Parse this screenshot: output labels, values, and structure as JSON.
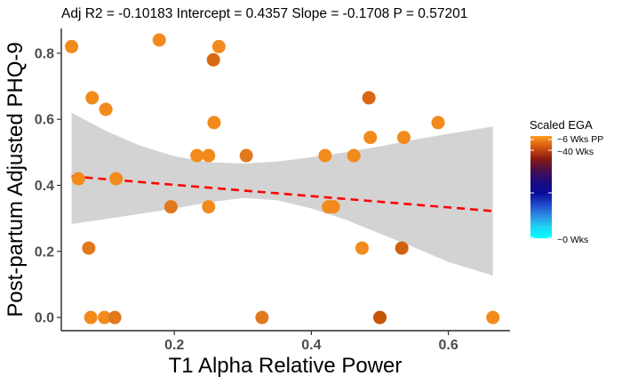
{
  "chart_data": {
    "type": "scatter",
    "title": "Adj R2 =  -0.10183 Intercept = 0.4357  Slope = -0.1708  P = 0.57201",
    "xlabel": "T1 Alpha Relative Power",
    "ylabel": "Post-partum Adjusted PHQ-9",
    "xlim": [
      0.035,
      0.69
    ],
    "ylim": [
      -0.04,
      0.875
    ],
    "xticks": [
      0.2,
      0.4,
      0.6
    ],
    "xtick_labels": [
      "0.2",
      "0.4",
      "0.6"
    ],
    "yticks": [
      0.0,
      0.2,
      0.4,
      0.6,
      0.8
    ],
    "ytick_labels": [
      "0.0",
      "0.2",
      "0.4",
      "0.6",
      "0.8"
    ],
    "grid": false,
    "legend_position": "right",
    "regression": {
      "intercept": 0.4357,
      "slope": -0.1708,
      "x_range": [
        0.05,
        0.665
      ],
      "color": "#ff0000",
      "style": "dashed"
    },
    "confidence_band": {
      "x": [
        0.05,
        0.1,
        0.15,
        0.2,
        0.25,
        0.3,
        0.35,
        0.4,
        0.45,
        0.5,
        0.55,
        0.6,
        0.665
      ],
      "upper": [
        0.62,
        0.565,
        0.52,
        0.488,
        0.47,
        0.466,
        0.472,
        0.485,
        0.5,
        0.518,
        0.538,
        0.556,
        0.578
      ],
      "lower": [
        0.283,
        0.298,
        0.314,
        0.33,
        0.348,
        0.362,
        0.355,
        0.33,
        0.296,
        0.254,
        0.212,
        0.168,
        0.127
      ],
      "color": "#d3d3d3"
    },
    "points": [
      {
        "x": 0.05,
        "y": 0.82,
        "color": "#f28a1c"
      },
      {
        "x": 0.06,
        "y": 0.42,
        "color": "#f28a1c"
      },
      {
        "x": 0.075,
        "y": 0.21,
        "color": "#e1781b"
      },
      {
        "x": 0.08,
        "y": 0.665,
        "color": "#f28a1c"
      },
      {
        "x": 0.1,
        "y": 0.63,
        "color": "#f28a1c"
      },
      {
        "x": 0.078,
        "y": 0.0,
        "color": "#f28a1c"
      },
      {
        "x": 0.098,
        "y": 0.0,
        "color": "#f28a1c"
      },
      {
        "x": 0.113,
        "y": 0.0,
        "color": "#e1781b"
      },
      {
        "x": 0.115,
        "y": 0.42,
        "color": "#f28a1c"
      },
      {
        "x": 0.178,
        "y": 0.84,
        "color": "#f28a1c"
      },
      {
        "x": 0.195,
        "y": 0.335,
        "color": "#e1781b"
      },
      {
        "x": 0.233,
        "y": 0.49,
        "color": "#f28a1c"
      },
      {
        "x": 0.25,
        "y": 0.49,
        "color": "#f28a1c"
      },
      {
        "x": 0.25,
        "y": 0.335,
        "color": "#f28a1c"
      },
      {
        "x": 0.257,
        "y": 0.78,
        "color": "#d86812"
      },
      {
        "x": 0.258,
        "y": 0.59,
        "color": "#f28a1c"
      },
      {
        "x": 0.265,
        "y": 0.82,
        "color": "#f28a1c"
      },
      {
        "x": 0.305,
        "y": 0.49,
        "color": "#e1781b"
      },
      {
        "x": 0.328,
        "y": 0.0,
        "color": "#e1781b"
      },
      {
        "x": 0.42,
        "y": 0.49,
        "color": "#f28a1c"
      },
      {
        "x": 0.425,
        "y": 0.335,
        "color": "#f28a1c"
      },
      {
        "x": 0.432,
        "y": 0.335,
        "color": "#f28a1c"
      },
      {
        "x": 0.462,
        "y": 0.49,
        "color": "#f28a1c"
      },
      {
        "x": 0.474,
        "y": 0.21,
        "color": "#f28a1c"
      },
      {
        "x": 0.484,
        "y": 0.665,
        "color": "#d86812"
      },
      {
        "x": 0.486,
        "y": 0.545,
        "color": "#f28a1c"
      },
      {
        "x": 0.5,
        "y": 0.0,
        "color": "#c55505"
      },
      {
        "x": 0.532,
        "y": 0.21,
        "color": "#d06010"
      },
      {
        "x": 0.535,
        "y": 0.545,
        "color": "#f28a1c"
      },
      {
        "x": 0.585,
        "y": 0.59,
        "color": "#f28a1c"
      },
      {
        "x": 0.665,
        "y": 0.0,
        "color": "#f28a1c"
      }
    ],
    "legend": {
      "title": "Scaled EGA",
      "labels": [
        "~6 Wks PP",
        "~40 Wks",
        "~0 Wks"
      ],
      "gradient_colors": [
        "#ff9e1e",
        "#d3520f",
        "#8a1a12",
        "#4a0f49",
        "#1d0c7e",
        "#0a0a9a",
        "#1d47c8",
        "#2d8be5",
        "#1fd4f2",
        "#00ffff"
      ]
    }
  }
}
